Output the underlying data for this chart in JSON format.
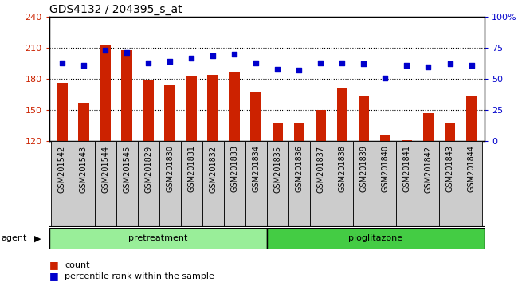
{
  "title": "GDS4132 / 204395_s_at",
  "samples": [
    "GSM201542",
    "GSM201543",
    "GSM201544",
    "GSM201545",
    "GSM201829",
    "GSM201830",
    "GSM201831",
    "GSM201832",
    "GSM201833",
    "GSM201834",
    "GSM201835",
    "GSM201836",
    "GSM201837",
    "GSM201838",
    "GSM201839",
    "GSM201840",
    "GSM201841",
    "GSM201842",
    "GSM201843",
    "GSM201844"
  ],
  "counts": [
    176,
    157,
    213,
    208,
    179,
    174,
    183,
    184,
    187,
    168,
    137,
    138,
    150,
    172,
    163,
    126,
    121,
    147,
    137,
    164
  ],
  "percentiles": [
    63,
    61,
    73,
    71,
    63,
    64,
    67,
    69,
    70,
    63,
    58,
    57,
    63,
    63,
    62,
    51,
    61,
    60,
    62,
    61
  ],
  "pretreatment_count": 10,
  "pioglitazone_count": 10,
  "ylim_left": [
    120,
    240
  ],
  "ylim_right": [
    0,
    100
  ],
  "yticks_left": [
    120,
    150,
    180,
    210,
    240
  ],
  "yticks_right": [
    0,
    25,
    50,
    75,
    100
  ],
  "bar_color": "#cc2200",
  "dot_color": "#0000cc",
  "pretreatment_color": "#99ee99",
  "pioglitazone_color": "#44cc44",
  "agent_label": "agent",
  "legend_bar": "count",
  "legend_dot": "percentile rank within the sample",
  "background_color": "#ffffff",
  "tick_label_fontsize": 7,
  "title_fontsize": 10,
  "bar_width": 0.5,
  "cell_color": "#cccccc",
  "grid_dotted_color": "#000000",
  "grid_dotted_ticks": [
    150,
    180,
    210
  ]
}
